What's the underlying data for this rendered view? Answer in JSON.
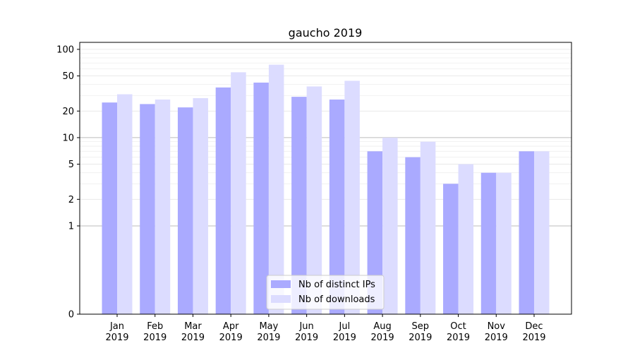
{
  "chart_data": {
    "type": "bar",
    "title": "gaucho 2019",
    "xlabel": "",
    "ylabel": "",
    "categories": [
      "Jan\n2019",
      "Feb\n2019",
      "Mar\n2019",
      "Apr\n2019",
      "May\n2019",
      "Jun\n2019",
      "Jul\n2019",
      "Aug\n2019",
      "Sep\n2019",
      "Oct\n2019",
      "Nov\n2019",
      "Dec\n2019"
    ],
    "series": [
      {
        "name": "Nb of distinct IPs",
        "values": [
          25,
          24,
          22,
          37,
          42,
          29,
          27,
          7,
          6,
          3,
          4,
          7
        ],
        "color": "#aaaaff"
      },
      {
        "name": "Nb of downloads",
        "values": [
          31,
          27,
          28,
          55,
          67,
          38,
          44,
          10,
          9,
          5,
          4,
          7
        ],
        "color": "#dcdcff"
      }
    ],
    "yscale": "symlog",
    "ylim": [
      0,
      120
    ],
    "yticks": [
      0,
      1,
      2,
      5,
      10,
      20,
      50,
      100
    ],
    "legend": "bottom-center",
    "grid": true
  }
}
